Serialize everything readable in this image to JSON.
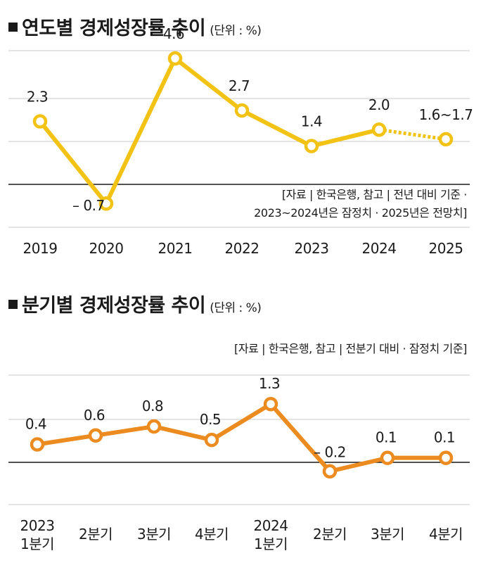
{
  "colors": {
    "annual": "#f2c314",
    "quarterly": "#ec8b1f",
    "grid": "#c8c8c8",
    "axis": "#1a1a1a"
  },
  "annual_panel": {
    "title": "연도별 경제성장률 추이",
    "unit": "(단위 : %)",
    "note_lines": [
      "[자료 | 한국은행, 참고 | 전년 대비 기준 ·",
      "2023~2024년은 잠정치 · 2025년은 전망치]"
    ]
  },
  "quarterly_panel": {
    "title": "분기별 경제성장률 추이",
    "unit": "(단위 : %)",
    "note_lines": [
      "[자료 | 한국은행, 참고 | 전분기 대비 · 잠정치 기준]"
    ]
  },
  "chart_data": [
    {
      "type": "line",
      "title": "연도별 경제성장률 추이",
      "categories": [
        "2019",
        "2020",
        "2021",
        "2022",
        "2023",
        "2024",
        "2025"
      ],
      "values": [
        2.3,
        -0.7,
        4.6,
        2.7,
        1.4,
        2.0,
        1.65
      ],
      "data_labels": [
        "2.3",
        "– 0.7",
        "4.6",
        "2.7",
        "1.4",
        "2.0",
        "1.6~1.7"
      ],
      "dotted_last_segment": true,
      "ylim": [
        -1.0,
        5.0
      ],
      "grid": true
    },
    {
      "type": "line",
      "title": "분기별 경제성장률 추이",
      "categories": [
        "2023\n1분기",
        "2분기",
        "3분기",
        "4분기",
        "2024\n1분기",
        "2분기",
        "3분기",
        "4분기"
      ],
      "values": [
        0.4,
        0.6,
        0.8,
        0.5,
        1.3,
        -0.2,
        0.1,
        0.1
      ],
      "data_labels": [
        "0.4",
        "0.6",
        "0.8",
        "0.5",
        "1.3",
        "– 0.2",
        "0.1",
        "0.1"
      ],
      "ylim": [
        -0.67,
        1.87
      ],
      "grid": true
    }
  ]
}
